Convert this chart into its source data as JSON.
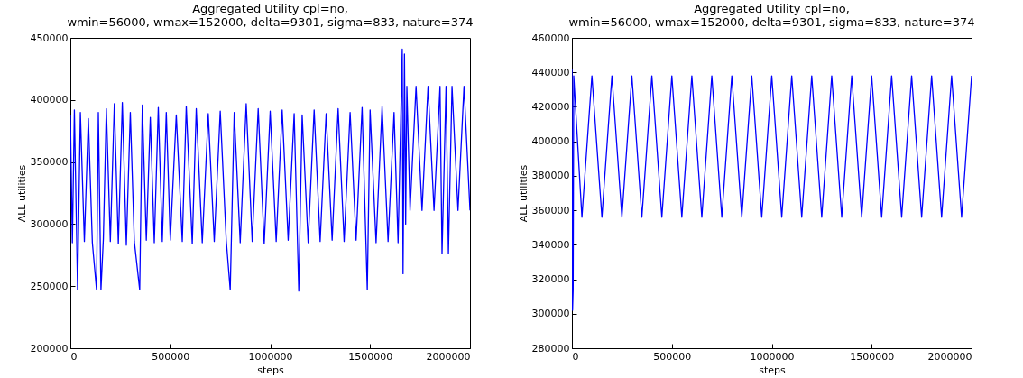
{
  "chart_data": [
    {
      "type": "line",
      "title": "Aggregated Utility cpl=no,\nwmin=56000, wmax=152000, delta=9301, sigma=833, nature=374",
      "xlabel": "steps",
      "ylabel": "ALL utilities",
      "xlim": [
        0,
        2000000
      ],
      "ylim": [
        200000,
        450000
      ],
      "xticks": [
        0,
        500000,
        1000000,
        1500000,
        2000000
      ],
      "yticks": [
        200000,
        250000,
        300000,
        350000,
        400000,
        450000
      ],
      "grid": false,
      "marker": "none",
      "line_style": "solid",
      "series": [
        {
          "color": "#0000ff",
          "x": [
            0,
            10000,
            20000,
            36000,
            50000,
            70000,
            90000,
            110000,
            131000,
            140000,
            153000,
            165000,
            180000,
            200000,
            220000,
            240000,
            260000,
            280000,
            300000,
            320000,
            347000,
            360000,
            380000,
            400000,
            420000,
            440000,
            460000,
            480000,
            500000,
            530000,
            560000,
            580000,
            610000,
            630000,
            660000,
            690000,
            720000,
            750000,
            780000,
            800000,
            820000,
            850000,
            880000,
            910000,
            940000,
            970000,
            1000000,
            1030000,
            1060000,
            1090000,
            1120000,
            1143000,
            1160000,
            1190000,
            1220000,
            1250000,
            1280000,
            1310000,
            1340000,
            1370000,
            1400000,
            1430000,
            1460000,
            1486000,
            1500000,
            1530000,
            1560000,
            1590000,
            1620000,
            1640000,
            1655000,
            1661000,
            1665000,
            1672000,
            1678000,
            1684000,
            1700000,
            1730000,
            1760000,
            1790000,
            1820000,
            1850000,
            1860000,
            1880000,
            1892000,
            1910000,
            1940000,
            1970000,
            2000000
          ],
          "values": [
            388000,
            285000,
            392000,
            247000,
            390000,
            286000,
            385000,
            285000,
            247000,
            390000,
            247000,
            288000,
            393000,
            286000,
            397000,
            284000,
            398000,
            283000,
            390000,
            286000,
            247000,
            396000,
            287000,
            386000,
            285000,
            394000,
            286000,
            390000,
            287000,
            388000,
            286000,
            395000,
            284000,
            393000,
            285000,
            389000,
            286000,
            391000,
            287000,
            247000,
            390000,
            285000,
            397000,
            286000,
            393000,
            284000,
            391000,
            286000,
            392000,
            287000,
            389000,
            246000,
            388000,
            285000,
            392000,
            286000,
            389000,
            287000,
            393000,
            286000,
            390000,
            287000,
            394000,
            247000,
            392000,
            285000,
            395000,
            286000,
            390000,
            285000,
            396000,
            441000,
            260000,
            437000,
            300000,
            411000,
            311000,
            411000,
            311000,
            411000,
            311000,
            411000,
            276000,
            411000,
            276000,
            411000,
            311000,
            411000,
            311000
          ]
        }
      ]
    },
    {
      "type": "line",
      "title": "Aggregated Utility cpl=no,\nwmin=56000, wmax=152000, delta=9301, sigma=833, nature=374",
      "xlabel": "steps",
      "ylabel": "ALL utilities",
      "xlim": [
        0,
        2000000
      ],
      "ylim": [
        280000,
        460000
      ],
      "xticks": [
        0,
        500000,
        1000000,
        1500000,
        2000000
      ],
      "yticks": [
        280000,
        300000,
        320000,
        340000,
        360000,
        380000,
        400000,
        420000,
        440000,
        460000
      ],
      "grid": false,
      "marker": "none",
      "line_style": "solid",
      "series": [
        {
          "color": "#0000ff",
          "x": [
            0,
            3000,
            6000,
            9000,
            50000,
            100000,
            150000,
            200000,
            250000,
            300000,
            350000,
            400000,
            450000,
            500000,
            550000,
            600000,
            650000,
            700000,
            750000,
            800000,
            850000,
            900000,
            950000,
            1000000,
            1050000,
            1100000,
            1150000,
            1200000,
            1250000,
            1300000,
            1350000,
            1400000,
            1450000,
            1500000,
            1550000,
            1600000,
            1650000,
            1700000,
            1750000,
            1800000,
            1850000,
            1900000,
            1950000,
            2000000
          ],
          "values": [
            442000,
            302000,
            314000,
            438000,
            356000,
            438000,
            356000,
            438000,
            356000,
            438000,
            356000,
            438000,
            356000,
            438000,
            356000,
            438000,
            356000,
            438000,
            356000,
            438000,
            356000,
            438000,
            356000,
            438000,
            356000,
            438000,
            356000,
            438000,
            356000,
            438000,
            356000,
            438000,
            356000,
            438000,
            356000,
            438000,
            356000,
            438000,
            356000,
            438000,
            356000,
            438000,
            356000,
            438000
          ]
        }
      ]
    }
  ]
}
